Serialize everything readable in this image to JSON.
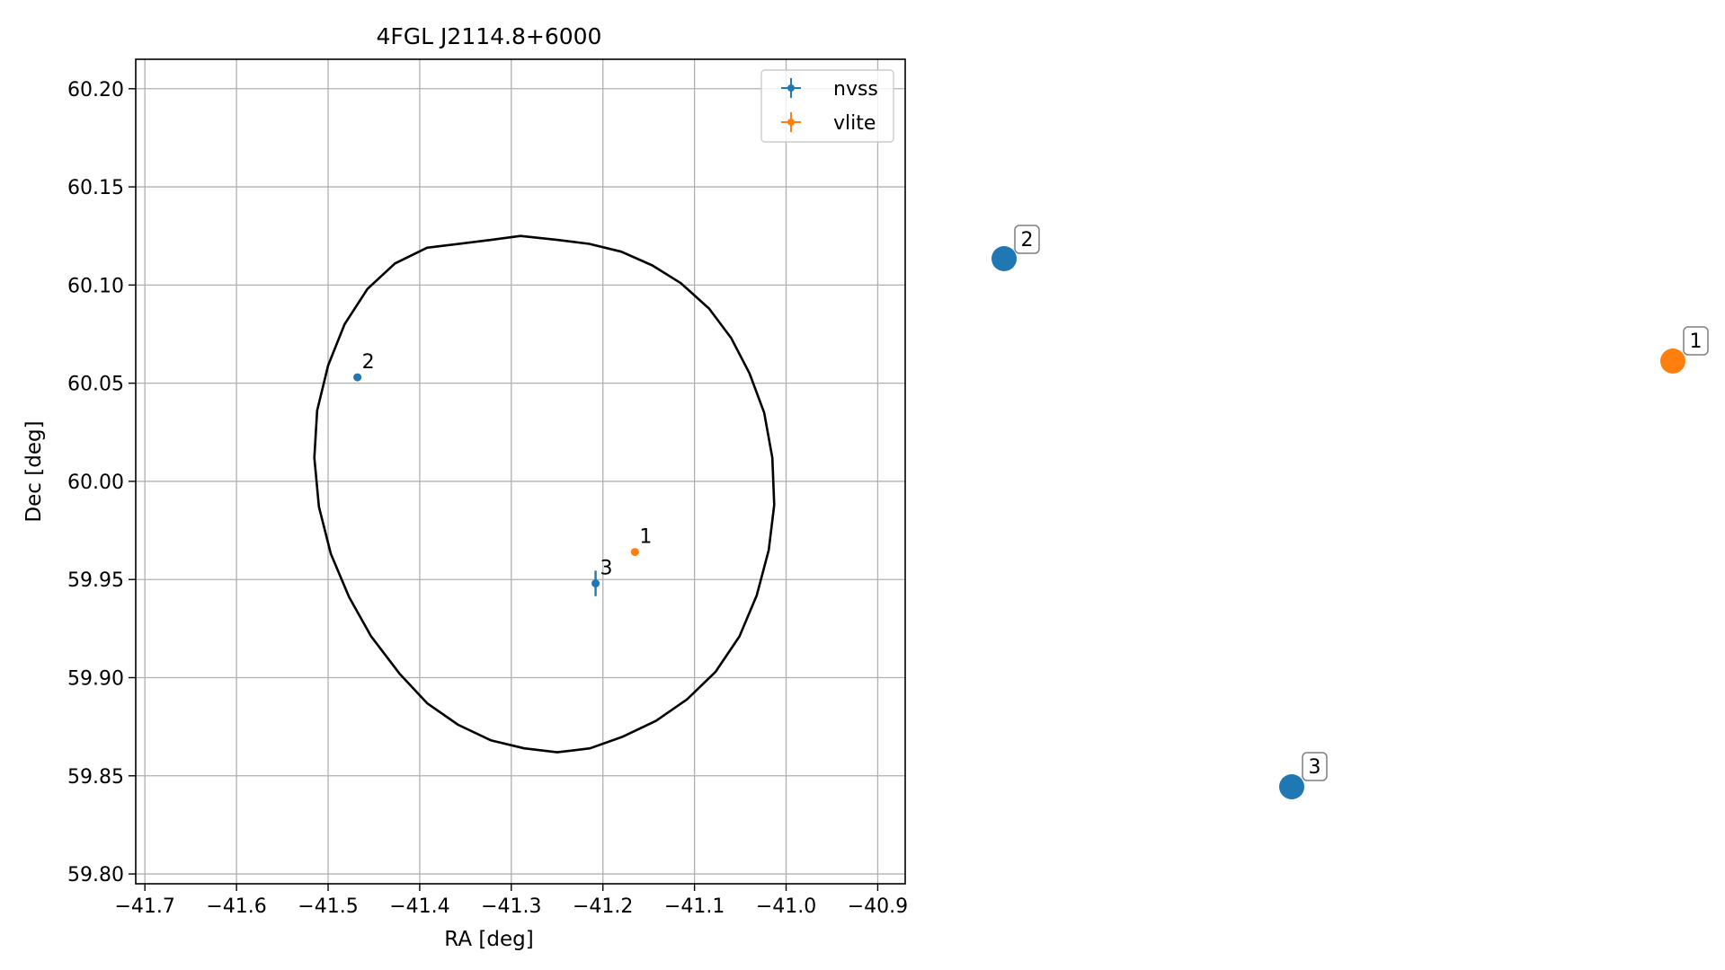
{
  "chart_data": [
    {
      "type": "scatter",
      "title": "4FGL J2114.8+6000",
      "xlabel": "RA [deg]",
      "ylabel": "Dec [deg]",
      "xlim": [
        -41.71,
        -40.87
      ],
      "ylim": [
        59.795,
        60.215
      ],
      "xticks": [
        -41.7,
        -41.6,
        -41.5,
        -41.4,
        -41.3,
        -41.2,
        -41.1,
        -41.0,
        -40.9
      ],
      "xtick_labels": [
        "−41.7",
        "−41.6",
        "−41.5",
        "−41.4",
        "−41.3",
        "−41.2",
        "−41.1",
        "−41.0",
        "−40.9"
      ],
      "yticks": [
        59.8,
        59.85,
        59.9,
        59.95,
        60.0,
        60.05,
        60.1,
        60.15,
        60.2
      ],
      "ytick_labels": [
        "59.80",
        "59.85",
        "59.90",
        "59.95",
        "60.00",
        "60.05",
        "60.10",
        "60.15",
        "60.20"
      ],
      "grid": true,
      "legend_position": "top-right",
      "series": [
        {
          "name": "nvss",
          "color": "#1f77b4",
          "points": [
            {
              "label": "2",
              "x": -41.468,
              "y": 60.053,
              "yerr": 0.0015
            },
            {
              "label": "3",
              "x": -41.208,
              "y": 59.948,
              "yerr": 0.0065
            }
          ]
        },
        {
          "name": "vlite",
          "color": "#ff7f0e",
          "points": [
            {
              "label": "1",
              "x": -41.165,
              "y": 59.964,
              "yerr": 0.001
            }
          ]
        }
      ],
      "ellipse": {
        "color": "#000000",
        "vertices": [
          [
            -41.25,
            60.123
          ],
          [
            -41.215,
            60.121
          ],
          [
            -41.18,
            60.117
          ],
          [
            -41.146,
            60.11
          ],
          [
            -41.115,
            60.101
          ],
          [
            -41.084,
            60.088
          ],
          [
            -41.06,
            60.073
          ],
          [
            -41.04,
            60.055
          ],
          [
            -41.024,
            60.035
          ],
          [
            -41.015,
            60.012
          ],
          [
            -41.013,
            59.988
          ],
          [
            -41.019,
            59.965
          ],
          [
            -41.032,
            59.942
          ],
          [
            -41.051,
            59.921
          ],
          [
            -41.077,
            59.903
          ],
          [
            -41.108,
            59.889
          ],
          [
            -41.142,
            59.878
          ],
          [
            -41.178,
            59.87
          ],
          [
            -41.214,
            59.864
          ],
          [
            -41.25,
            59.862
          ],
          [
            -41.286,
            59.864
          ],
          [
            -41.322,
            59.868
          ],
          [
            -41.358,
            59.876
          ],
          [
            -41.392,
            59.887
          ],
          [
            -41.422,
            59.902
          ],
          [
            -41.453,
            59.921
          ],
          [
            -41.477,
            59.941
          ],
          [
            -41.497,
            59.963
          ],
          [
            -41.51,
            59.987
          ],
          [
            -41.515,
            60.012
          ],
          [
            -41.512,
            60.036
          ],
          [
            -41.5,
            60.059
          ],
          [
            -41.482,
            60.08
          ],
          [
            -41.457,
            60.098
          ],
          [
            -41.427,
            60.111
          ],
          [
            -41.392,
            60.119
          ],
          [
            -41.322,
            60.123
          ],
          [
            -41.29,
            60.125
          ]
        ]
      }
    },
    {
      "type": "scatter",
      "series": [
        {
          "name": "nvss",
          "color": "#1f77b4",
          "points": [
            {
              "label": "2",
              "x": -41.468,
              "y": 60.053
            },
            {
              "label": "3",
              "x": -41.208,
              "y": 59.948
            }
          ]
        },
        {
          "name": "vlite",
          "color": "#ff7f0e",
          "points": [
            {
              "label": "1",
              "x": -41.165,
              "y": 59.964
            }
          ]
        }
      ]
    }
  ]
}
